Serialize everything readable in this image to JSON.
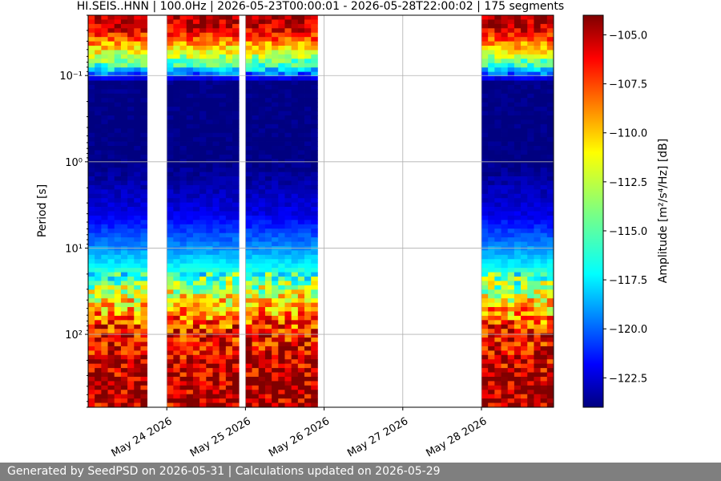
{
  "chart_data": {
    "type": "heatmap",
    "title": "HI.SEIS..HNN | 100.0Hz | 2026-05-23T00:00:01 - 2026-05-28T22:00:02 | 175 segments",
    "xlabel": "",
    "ylabel": "Period [s]",
    "y_scale": "log",
    "y_inverted": true,
    "ylim": [
      0.02,
      700
    ],
    "y_ticks": [
      0.1,
      1,
      10,
      100
    ],
    "y_tick_labels": [
      "10⁻¹",
      "10⁰",
      "10¹",
      "10²"
    ],
    "xlim": [
      "2026-05-23T00:00",
      "2026-05-28T22:00"
    ],
    "x_ticks": [
      "2026-05-24",
      "2026-05-25",
      "2026-05-26",
      "2026-05-27",
      "2026-05-28"
    ],
    "x_tick_labels": [
      "May 24 2026",
      "May 25 2026",
      "May 26 2026",
      "May 27 2026",
      "May 28 2026"
    ],
    "grid": true,
    "data_intervals": [
      [
        "2026-05-23T00:00",
        "2026-05-23T18:00"
      ],
      [
        "2026-05-24T00:00",
        "2026-05-24T22:00"
      ],
      [
        "2026-05-25T00:00",
        "2026-05-25T22:00"
      ],
      [
        "2026-05-28T00:00",
        "2026-05-28T22:00"
      ]
    ],
    "amplitude_profile": {
      "periods_s": [
        0.02,
        0.03,
        0.05,
        0.08,
        0.12,
        0.3,
        1,
        2,
        4,
        8,
        15,
        30,
        60,
        100,
        200,
        400,
        700
      ],
      "amplitude_db": [
        -105,
        -106,
        -111,
        -116,
        -124,
        -124,
        -124,
        -123,
        -122,
        -119.5,
        -117,
        -113,
        -109,
        -106.5,
        -105.5,
        -104.5,
        -105
      ]
    },
    "colorbar": {
      "label": "Amplitude [m²/s⁴/Hz] [dB]",
      "range": [
        -124,
        -104
      ],
      "ticks": [
        -105.0,
        -107.5,
        -110.0,
        -112.5,
        -115.0,
        -117.5,
        -120.0,
        -122.5
      ],
      "tick_labels": [
        "−105.0",
        "−107.5",
        "−110.0",
        "−112.5",
        "−115.0",
        "−117.5",
        "−120.0",
        "−122.5"
      ],
      "colormap": "jet"
    }
  },
  "footer": {
    "text": "Generated by SeedPSD on 2026-05-31 | Calculations updated on 2026-05-29"
  }
}
